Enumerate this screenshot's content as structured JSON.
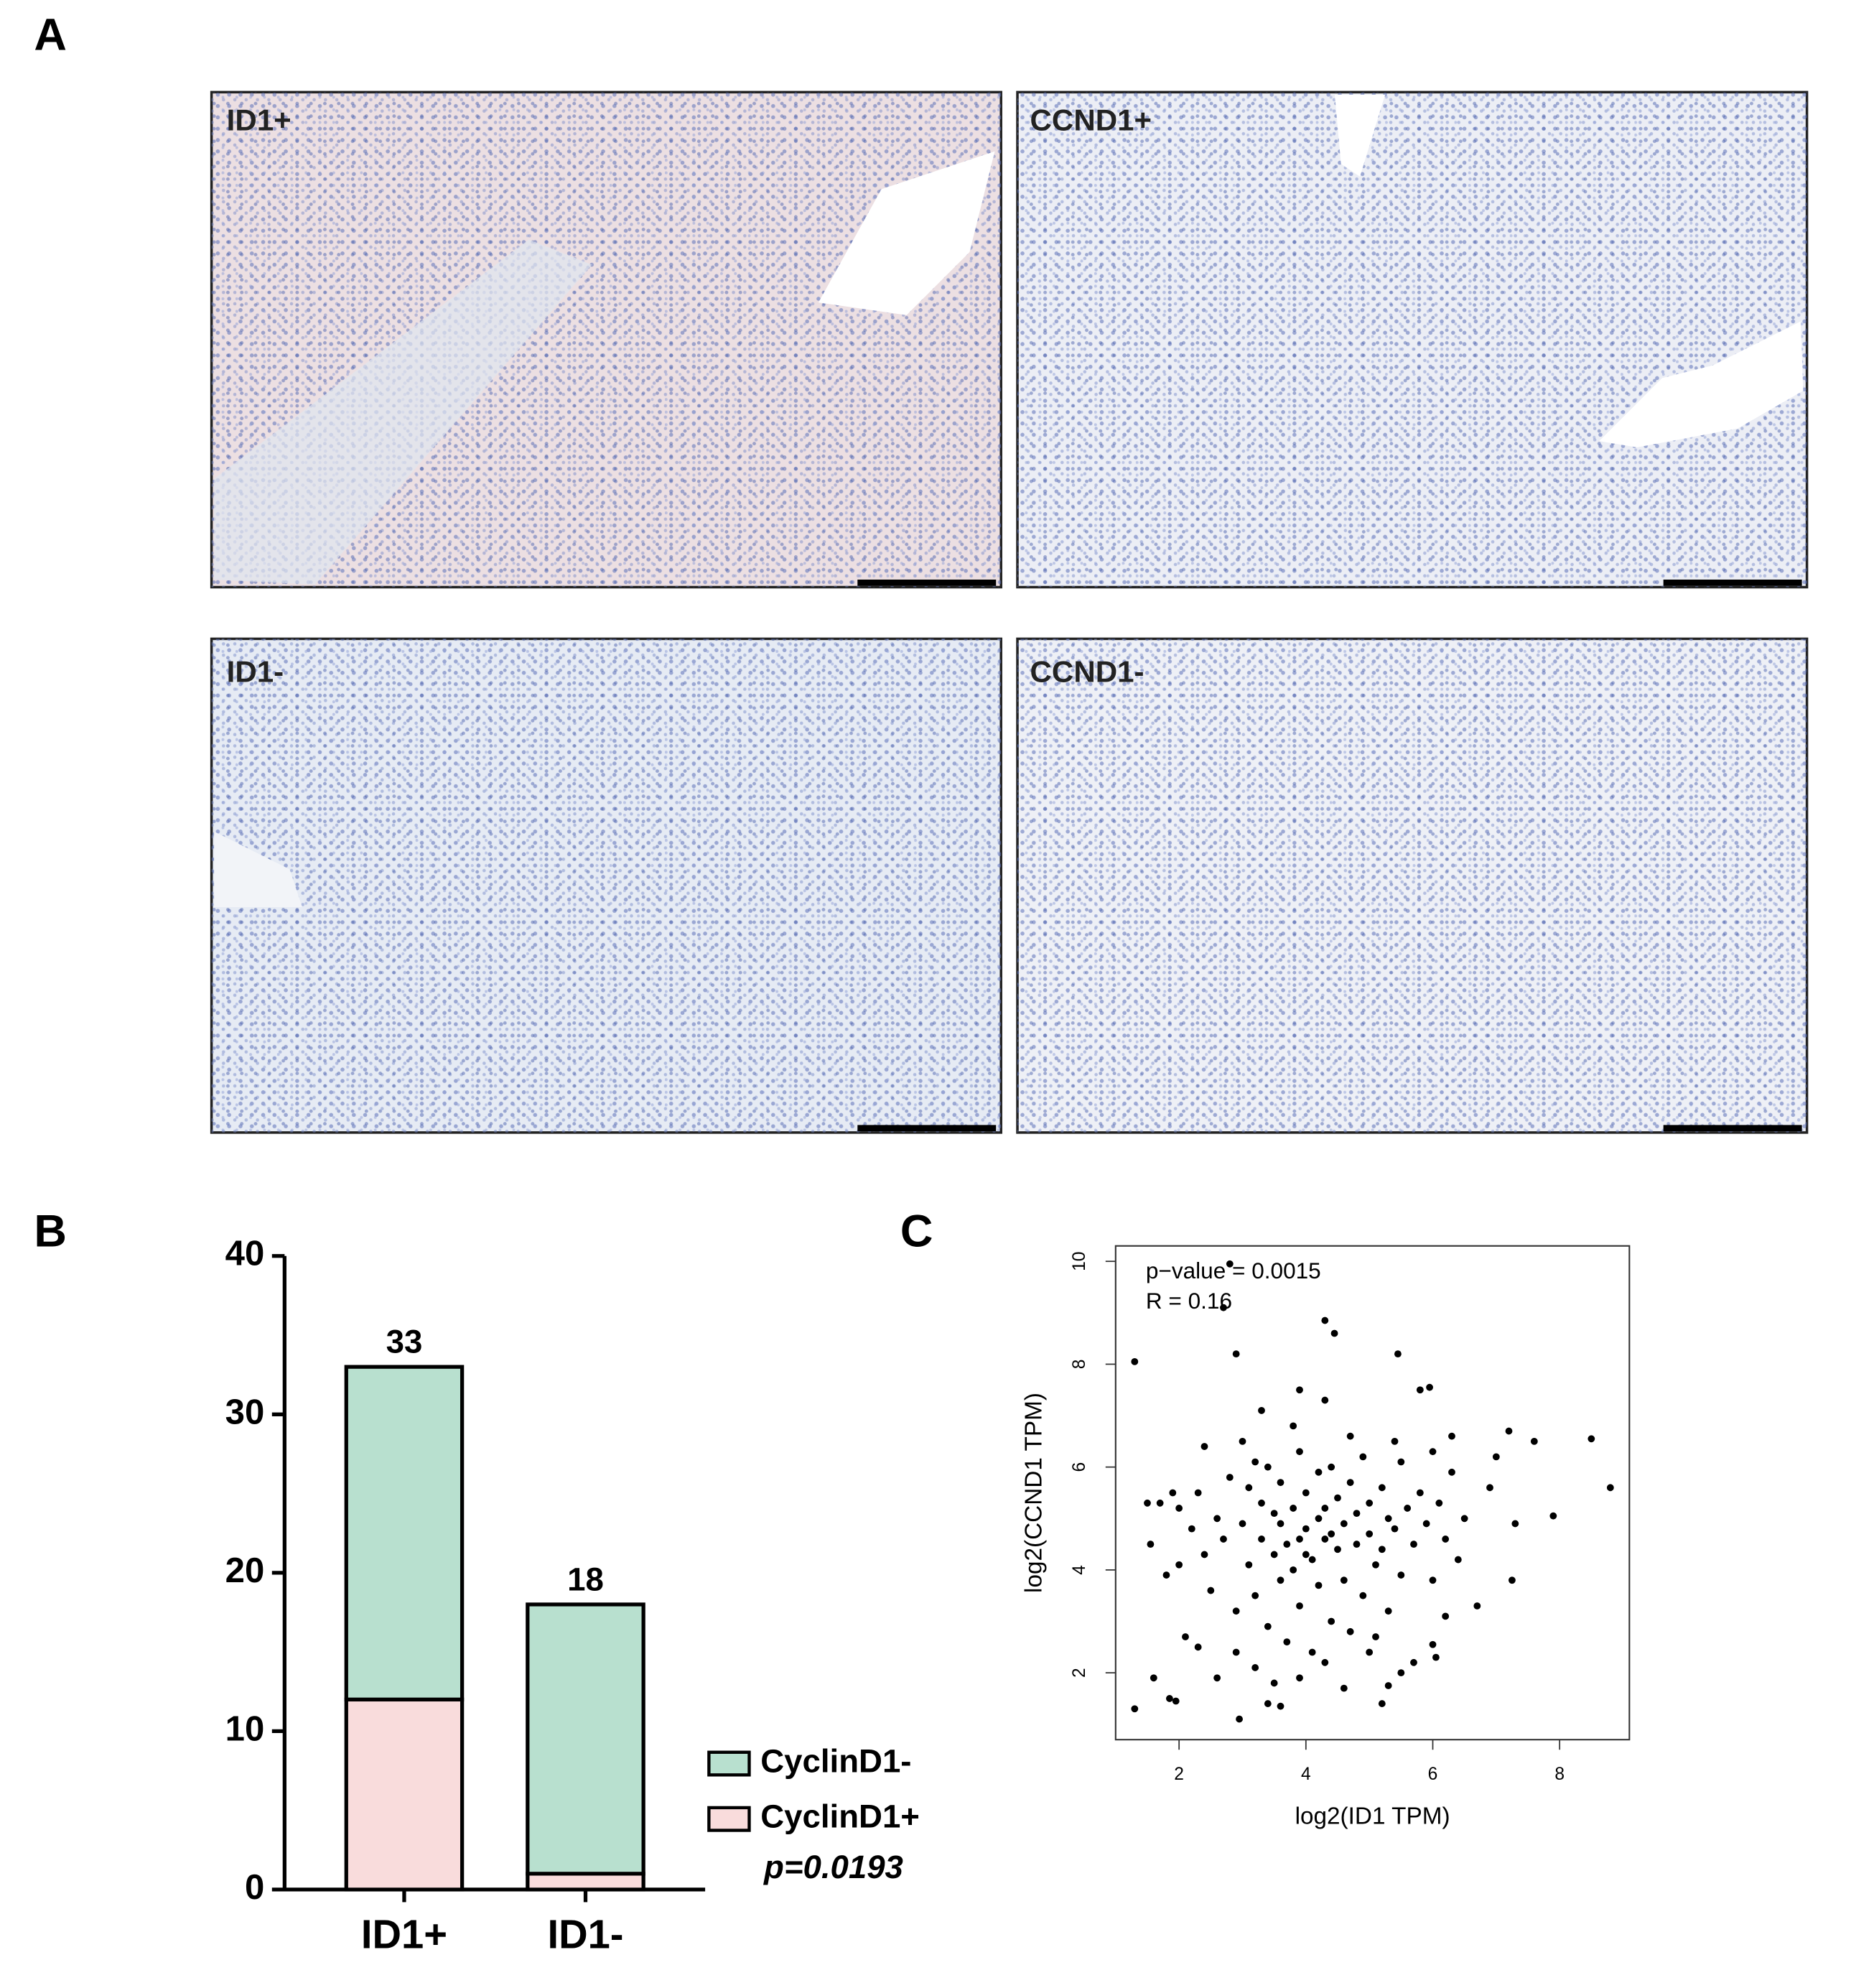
{
  "figure": {
    "panel_labels": [
      "A",
      "B",
      "C"
    ],
    "images": [
      "ID1+",
      "CCND1+",
      "ID1-",
      "CCND1-"
    ]
  },
  "chart_data": [
    {
      "type": "bar",
      "stacked": true,
      "categories": [
        "ID1+",
        "ID1-"
      ],
      "series": [
        {
          "name": "CyclinD1+",
          "color": "#f9dcdc",
          "values": [
            12,
            1
          ]
        },
        {
          "name": "CyclinD1-",
          "color": "#b8e0cf",
          "values": [
            21,
            17
          ]
        }
      ],
      "totals": [
        33,
        18
      ],
      "annotation": "p=0.0193",
      "ylim": [
        0,
        40
      ],
      "yticks": [
        0,
        10,
        20,
        30,
        40
      ]
    },
    {
      "type": "scatter",
      "x_label": "log2(ID1 TPM)",
      "y_label": "log2(CCND1 TPM)",
      "annotations": [
        "p−value = 0.0015",
        "R = 0.16"
      ],
      "color": "#000000",
      "xlim": [
        1.0,
        9.1
      ],
      "ylim": [
        0.7,
        10.3
      ],
      "xticks": [
        2,
        4,
        6,
        8
      ],
      "yticks": [
        2,
        4,
        6,
        8,
        10
      ],
      "x": [
        1.3,
        1.3,
        2.9,
        2.8,
        2.7,
        4.3,
        4.45,
        5.45,
        5.8,
        5.95,
        4.3,
        3.9,
        8.8,
        8.5,
        7.9,
        7.6,
        7.2,
        7.25,
        1.5,
        1.7,
        1.55,
        1.6,
        1.85,
        1.95,
        2.95,
        5.2,
        5.3,
        3.4,
        3.6,
        6.0,
        6.05,
        2.0,
        2.2,
        2.3,
        2.4,
        2.5,
        2.6,
        2.7,
        2.8,
        2.9,
        3.0,
        3.1,
        3.1,
        3.2,
        3.2,
        3.3,
        3.3,
        3.4,
        3.4,
        3.5,
        3.5,
        3.6,
        3.6,
        3.7,
        3.7,
        3.8,
        3.8,
        3.9,
        3.9,
        4.0,
        4.0,
        4.1,
        4.1,
        4.2,
        4.2,
        4.3,
        4.3,
        4.4,
        4.4,
        4.5,
        4.5,
        4.6,
        4.6,
        4.7,
        4.7,
        4.8,
        4.8,
        4.9,
        4.9,
        5.0,
        5.0,
        5.1,
        5.1,
        5.2,
        5.2,
        5.3,
        5.3,
        5.4,
        5.5,
        5.5,
        5.6,
        5.7,
        5.7,
        5.8,
        5.9,
        6.0,
        6.0,
        6.1,
        6.2,
        6.2,
        6.3,
        6.4,
        6.5,
        6.7,
        6.9,
        7.0,
        7.3,
        2.1,
        2.3,
        2.6,
        2.9,
        3.2,
        3.5,
        3.9,
        4.3,
        4.6,
        5.0,
        5.5,
        1.8,
        2.0,
        1.9,
        2.4,
        3.0,
        3.3,
        3.8,
        4.7,
        5.4,
        6.3,
        4.0,
        4.4,
        3.6,
        4.2,
        3.9
      ],
      "y": [
        1.3,
        8.05,
        8.2,
        9.95,
        9.1,
        8.85,
        8.6,
        8.2,
        7.5,
        7.55,
        7.3,
        7.5,
        5.6,
        6.55,
        5.05,
        6.5,
        6.7,
        3.8,
        5.3,
        5.3,
        4.5,
        1.9,
        1.5,
        1.45,
        1.1,
        1.4,
        1.75,
        1.4,
        1.35,
        2.55,
        2.3,
        5.2,
        4.8,
        5.5,
        4.3,
        3.6,
        5.0,
        4.6,
        5.8,
        3.2,
        4.9,
        5.6,
        4.1,
        6.1,
        3.5,
        4.6,
        5.3,
        2.9,
        6.0,
        4.3,
        5.1,
        3.8,
        5.7,
        4.5,
        2.6,
        5.2,
        4.0,
        6.3,
        3.3,
        4.8,
        5.5,
        4.2,
        2.4,
        5.9,
        3.7,
        4.6,
        5.2,
        3.0,
        6.0,
        4.4,
        5.4,
        3.8,
        4.9,
        5.7,
        2.8,
        4.5,
        5.1,
        3.5,
        6.2,
        4.7,
        5.3,
        4.1,
        2.7,
        5.6,
        4.4,
        3.2,
        5.0,
        4.8,
        6.1,
        3.9,
        5.2,
        4.5,
        2.2,
        5.5,
        4.9,
        6.3,
        3.8,
        5.3,
        4.6,
        3.1,
        5.9,
        4.2,
        5.0,
        3.3,
        5.6,
        6.2,
        4.9,
        2.7,
        2.5,
        1.9,
        2.4,
        2.1,
        1.8,
        1.9,
        2.2,
        1.7,
        2.4,
        2.0,
        3.9,
        4.1,
        5.5,
        6.4,
        6.5,
        7.1,
        6.8,
        6.6,
        6.5,
        6.6,
        4.3,
        4.7,
        4.9,
        5.0,
        4.6
      ]
    }
  ]
}
